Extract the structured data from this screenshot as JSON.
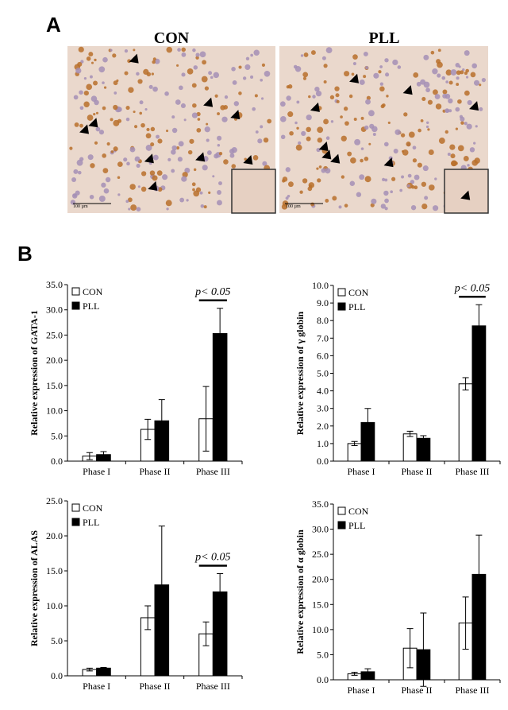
{
  "figure": {
    "panel_a": "A",
    "panel_b": "B",
    "images": [
      {
        "title": "CON",
        "scale": "100 µm"
      },
      {
        "title": "PLL",
        "scale": "100 µm"
      }
    ]
  },
  "chart_data": [
    {
      "type": "bar",
      "ylabel": "Relative expression of GATA-1",
      "categories": [
        "Phase I",
        "Phase II",
        "Phase III"
      ],
      "series": [
        {
          "name": "CON",
          "color": "#ffffff",
          "values": [
            1.0,
            6.3,
            8.4
          ],
          "errors": [
            0.7,
            2.0,
            6.4
          ]
        },
        {
          "name": "PLL",
          "color": "#000000",
          "values": [
            1.3,
            8.0,
            25.3
          ],
          "errors": [
            0.6,
            4.2,
            5.0
          ]
        }
      ],
      "ylim": [
        0,
        35
      ],
      "yticks": [
        {
          "value": 0,
          "label": "0.0"
        },
        {
          "value": 5,
          "label": "5.0"
        },
        {
          "value": 10,
          "label": "10.0"
        },
        {
          "value": 15,
          "label": "15.0"
        },
        {
          "value": 20,
          "label": "20.0"
        },
        {
          "value": 25,
          "label": "25.0"
        },
        {
          "value": 30,
          "label": "30.0"
        },
        {
          "value": 35,
          "label": "35.0"
        }
      ],
      "annotations": [
        {
          "text": "p< 0.05",
          "category": "Phase III"
        }
      ]
    },
    {
      "type": "bar",
      "ylabel": "Relative expression of γ globin",
      "categories": [
        "Phase I",
        "Phase II",
        "Phase III"
      ],
      "series": [
        {
          "name": "CON",
          "color": "#ffffff",
          "values": [
            1.0,
            1.55,
            4.4
          ],
          "errors": [
            0.12,
            0.15,
            0.35
          ]
        },
        {
          "name": "PLL",
          "color": "#000000",
          "values": [
            2.2,
            1.3,
            7.7
          ],
          "errors": [
            0.8,
            0.15,
            1.2
          ]
        }
      ],
      "ylim": [
        0,
        10
      ],
      "yticks": [
        {
          "value": 0,
          "label": "0.0"
        },
        {
          "value": 1,
          "label": "1.0"
        },
        {
          "value": 2,
          "label": "2.0"
        },
        {
          "value": 3,
          "label": "3.0"
        },
        {
          "value": 4,
          "label": "4.0"
        },
        {
          "value": 5,
          "label": "5.0"
        },
        {
          "value": 6,
          "label": "6.0"
        },
        {
          "value": 7,
          "label": "7.0"
        },
        {
          "value": 8,
          "label": "8.0"
        },
        {
          "value": 9,
          "label": "9.0"
        },
        {
          "value": 10,
          "label": "10.0"
        }
      ],
      "annotations": [
        {
          "text": "p< 0.05",
          "category": "Phase III"
        }
      ]
    },
    {
      "type": "bar",
      "ylabel": "Relative expression of ALAS",
      "categories": [
        "Phase I",
        "Phase II",
        "Phase III"
      ],
      "series": [
        {
          "name": "CON",
          "color": "#ffffff",
          "values": [
            0.9,
            8.3,
            6.0
          ],
          "errors": [
            0.2,
            1.7,
            1.7
          ]
        },
        {
          "name": "PLL",
          "color": "#000000",
          "values": [
            1.1,
            13.0,
            12.0
          ],
          "errors": [
            0.1,
            8.4,
            2.6
          ]
        }
      ],
      "ylim": [
        0,
        25
      ],
      "yticks": [
        {
          "value": 0,
          "label": "0.0"
        },
        {
          "value": 5,
          "label": "5.0"
        },
        {
          "value": 10,
          "label": "10.0"
        },
        {
          "value": 15,
          "label": "15.0"
        },
        {
          "value": 20,
          "label": "20.0"
        },
        {
          "value": 25,
          "label": "25.0"
        }
      ],
      "annotations": [
        {
          "text": "p< 0.05",
          "category": "Phase III"
        }
      ]
    },
    {
      "type": "bar",
      "ylabel": "Relative expression of α globin",
      "categories": [
        "Phase I",
        "Phase II",
        "Phase III"
      ],
      "series": [
        {
          "name": "CON",
          "color": "#ffffff",
          "values": [
            1.2,
            6.3,
            11.3
          ],
          "errors": [
            0.3,
            3.9,
            5.2
          ]
        },
        {
          "name": "PLL",
          "color": "#000000",
          "values": [
            1.6,
            6.0,
            21.0
          ],
          "errors": [
            0.6,
            7.3,
            7.8
          ]
        }
      ],
      "ylim": [
        0,
        35
      ],
      "yticks": [
        {
          "value": 0,
          "label": "0.0"
        },
        {
          "value": 5,
          "label": "5.0"
        },
        {
          "value": 10,
          "label": "10.0"
        },
        {
          "value": 15,
          "label": "15.0"
        },
        {
          "value": 20,
          "label": "20.0"
        },
        {
          "value": 25,
          "label": "25.0"
        },
        {
          "value": 30,
          "label": "30.0"
        },
        {
          "value": 35,
          "label": "35.0"
        }
      ],
      "annotations": []
    }
  ]
}
